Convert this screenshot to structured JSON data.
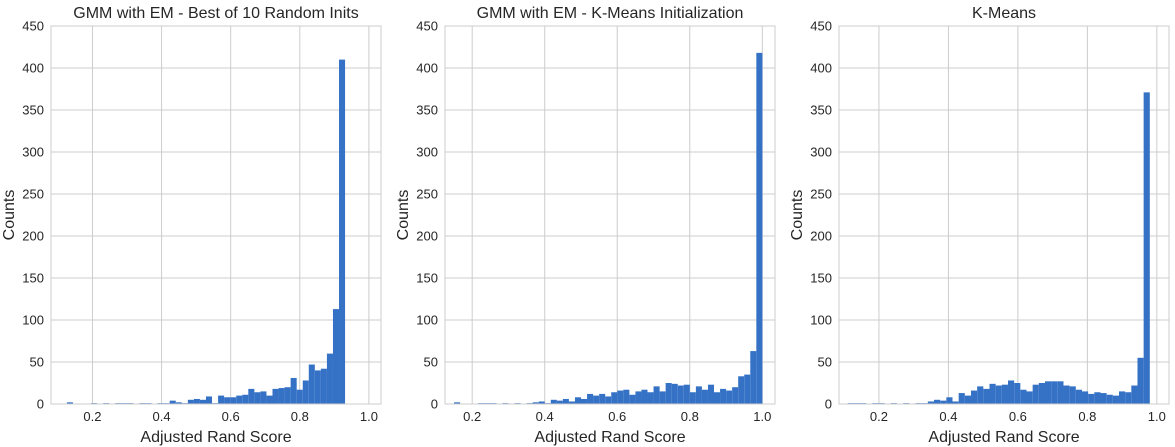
{
  "chart_data": [
    {
      "type": "bar",
      "title": "GMM with EM - Best of 10 Random Inits",
      "xlabel": "Adjusted Rand Score",
      "ylabel": "Counts",
      "xlim": [
        0.08,
        1.035
      ],
      "ylim": [
        0,
        450
      ],
      "xticks": [
        0.2,
        0.4,
        0.6,
        0.8,
        1.0
      ],
      "xtick_labels": [
        "0.2",
        "0.4",
        "0.6",
        "0.8",
        "1.0"
      ],
      "yticks": [
        0,
        50,
        100,
        150,
        200,
        250,
        300,
        350,
        400,
        450
      ],
      "ytick_labels": [
        "0",
        "50",
        "100",
        "150",
        "200",
        "250",
        "300",
        "350",
        "400",
        "450"
      ],
      "grid": true,
      "bar_color": "#3572c6",
      "bin_start": 0.126,
      "bin_width": 0.0175,
      "counts": [
        2,
        0,
        0,
        0,
        1,
        0,
        1,
        0,
        1,
        1,
        1,
        0,
        1,
        1,
        0,
        1,
        1,
        4,
        2,
        1,
        5,
        6,
        5,
        9,
        1,
        10,
        8,
        8,
        10,
        11,
        18,
        14,
        15,
        10,
        18,
        19,
        20,
        31,
        17,
        28,
        47,
        40,
        42,
        60,
        113,
        410
      ]
    },
    {
      "type": "bar",
      "title": "GMM with EM - K-Means Initialization",
      "xlabel": "Adjusted Rand Score",
      "ylabel": "Counts",
      "xlim": [
        0.125,
        1.035
      ],
      "ylim": [
        0,
        450
      ],
      "xticks": [
        0.2,
        0.4,
        0.6,
        0.8,
        1.0
      ],
      "xtick_labels": [
        "0.2",
        "0.4",
        "0.6",
        "0.8",
        "1.0"
      ],
      "yticks": [
        0,
        50,
        100,
        150,
        200,
        250,
        300,
        350,
        400,
        450
      ],
      "ytick_labels": [
        "0",
        "50",
        "100",
        "150",
        "200",
        "250",
        "300",
        "350",
        "400",
        "450"
      ],
      "grid": true,
      "bar_color": "#3572c6",
      "bin_start": 0.15,
      "bin_width": 0.01667,
      "counts": [
        2,
        0,
        0,
        0,
        1,
        1,
        1,
        0,
        1,
        0,
        1,
        0,
        1,
        2,
        3,
        1,
        5,
        4,
        6,
        3,
        8,
        6,
        12,
        10,
        12,
        9,
        14,
        16,
        17,
        11,
        15,
        17,
        14,
        21,
        15,
        25,
        24,
        22,
        23,
        14,
        21,
        17,
        23,
        14,
        18,
        16,
        20,
        33,
        35,
        63,
        418
      ]
    },
    {
      "type": "bar",
      "title": "K-Means",
      "xlabel": "Adjusted Rand Score",
      "ylabel": "Counts",
      "xlim": [
        0.085,
        1.035
      ],
      "ylim": [
        0,
        450
      ],
      "xticks": [
        0.2,
        0.4,
        0.6,
        0.8,
        1.0
      ],
      "xtick_labels": [
        "0.2",
        "0.4",
        "0.6",
        "0.8",
        "1.0"
      ],
      "yticks": [
        0,
        50,
        100,
        150,
        200,
        250,
        300,
        350,
        400,
        450
      ],
      "ytick_labels": [
        "0",
        "50",
        "100",
        "150",
        "200",
        "250",
        "300",
        "350",
        "400",
        "450"
      ],
      "grid": true,
      "bar_color": "#3572c6",
      "bin_start": 0.11,
      "bin_width": 0.01775,
      "counts": [
        1,
        1,
        1,
        0,
        1,
        1,
        0,
        1,
        0,
        1,
        0,
        1,
        1,
        3,
        5,
        4,
        8,
        3,
        13,
        10,
        16,
        21,
        18,
        24,
        22,
        23,
        28,
        25,
        17,
        15,
        23,
        25,
        27,
        27,
        27,
        22,
        21,
        17,
        15,
        12,
        14,
        13,
        11,
        10,
        15,
        14,
        22,
        55,
        371
      ]
    }
  ]
}
